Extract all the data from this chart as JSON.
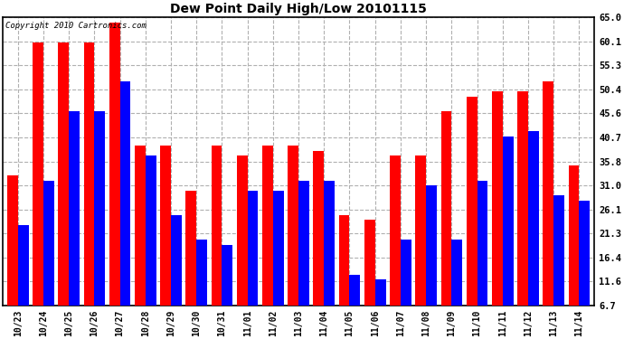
{
  "title": "Dew Point Daily High/Low 20101115",
  "copyright": "Copyright 2010 Cartronics.com",
  "categories": [
    "10/23",
    "10/24",
    "10/25",
    "10/26",
    "10/27",
    "10/28",
    "10/29",
    "10/30",
    "10/31",
    "11/01",
    "11/02",
    "11/03",
    "11/04",
    "11/05",
    "11/06",
    "11/07",
    "11/08",
    "11/09",
    "11/10",
    "11/11",
    "11/12",
    "11/13",
    "11/14"
  ],
  "highs": [
    33,
    60,
    60,
    60,
    64,
    39,
    39,
    30,
    39,
    37,
    39,
    39,
    38,
    25,
    24,
    37,
    37,
    46,
    49,
    50,
    50,
    52,
    35
  ],
  "lows": [
    23,
    32,
    46,
    46,
    52,
    37,
    25,
    20,
    19,
    30,
    30,
    32,
    32,
    13,
    12,
    20,
    31,
    20,
    32,
    41,
    42,
    29,
    28
  ],
  "high_color": "#ff0000",
  "low_color": "#0000ff",
  "bg_color": "#ffffff",
  "plot_bg_color": "#ffffff",
  "grid_color": "#b0b0b0",
  "yticks": [
    6.7,
    11.6,
    16.4,
    21.3,
    26.1,
    31.0,
    35.8,
    40.7,
    45.6,
    50.4,
    55.3,
    60.1,
    65.0
  ],
  "ymin": 6.7,
  "ymax": 65.0,
  "bar_width": 0.42,
  "figwidth": 6.9,
  "figheight": 3.75,
  "dpi": 100
}
